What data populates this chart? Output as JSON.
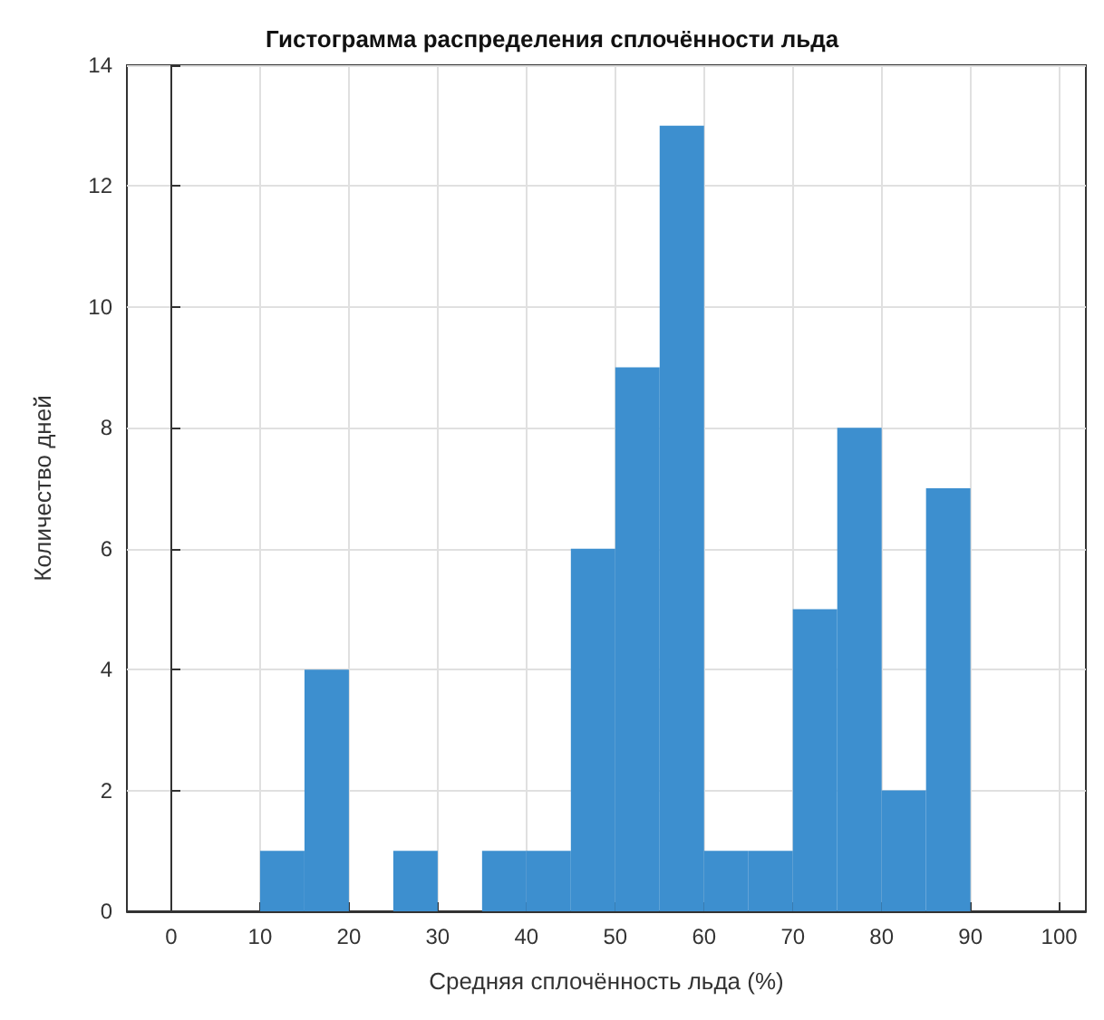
{
  "chart_data": {
    "type": "histogram",
    "title": "Гистограмма распределения сплочённости льда",
    "xlabel": "Средняя сплочённость льда (%)",
    "ylabel": "Количество дней",
    "bins": [
      10,
      15,
      20,
      25,
      30,
      35,
      40,
      45,
      50,
      55,
      60,
      65,
      70,
      75,
      80,
      85,
      90
    ],
    "values": [
      1,
      4,
      0,
      1,
      0,
      1,
      1,
      6,
      9,
      13,
      1,
      1,
      5,
      8,
      2,
      7
    ],
    "color": "#3d8fcf",
    "xlim": [
      -5,
      103
    ],
    "xticks": [
      0,
      10,
      20,
      30,
      40,
      50,
      60,
      70,
      80,
      90,
      100
    ],
    "ylim": [
      0,
      14
    ],
    "yticks": [
      0,
      2,
      4,
      6,
      8,
      10,
      12,
      14
    ],
    "grid": true
  }
}
